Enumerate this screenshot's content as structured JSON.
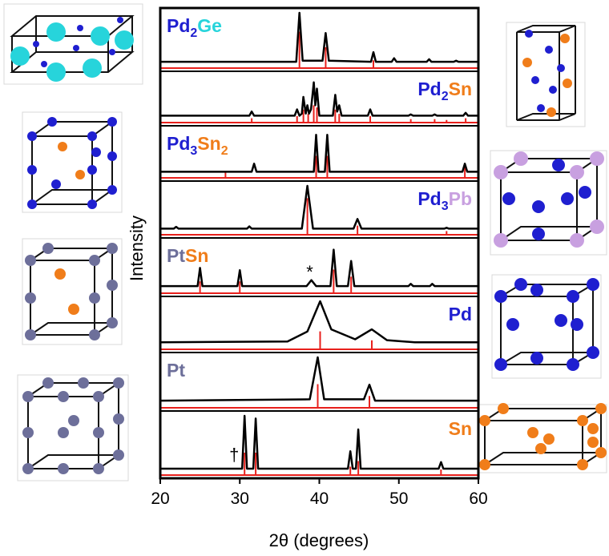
{
  "chart_data": {
    "type": "line",
    "xlabel": "2θ (degrees)",
    "ylabel": "Intensity",
    "xlim": [
      20,
      60
    ],
    "xticks": [
      20,
      30,
      40,
      50,
      60
    ],
    "line_color": "#000000",
    "ref_color": "#e8201c",
    "patterns": [
      {
        "label": [
          {
            "text": "Pd",
            "color": "#1f1fd0"
          },
          {
            "text": "2",
            "color": "#1f1fd0",
            "sub": true
          },
          {
            "text": "Ge",
            "color": "#27d4db"
          }
        ],
        "x": [
          20,
          37.1,
          37.5,
          37.9,
          40.4,
          40.8,
          41.2,
          46.5,
          46.8,
          47.1,
          49.1,
          49.4,
          49.7,
          53.5,
          53.8,
          54.1,
          56.9,
          57.2,
          57.5,
          60
        ],
        "y": [
          0.03,
          0.03,
          1.0,
          0.05,
          0.05,
          0.6,
          0.05,
          0.03,
          0.22,
          0.03,
          0.03,
          0.1,
          0.03,
          0.03,
          0.08,
          0.03,
          0.03,
          0.05,
          0.03,
          0.03
        ],
        "ref_positions": [
          37.5,
          40.8,
          46.8
        ],
        "ref_heights": [
          0.7,
          0.4,
          0.15
        ]
      },
      {
        "label": [
          {
            "text": "Pd",
            "color": "#1f1fd0"
          },
          {
            "text": "2",
            "color": "#1f1fd0",
            "sub": true
          },
          {
            "text": "Sn",
            "color": "#f07d1a"
          }
        ],
        "x": [
          20,
          31.2,
          31.5,
          31.8,
          36.9,
          37.2,
          37.5,
          37.8,
          38.0,
          38.3,
          38.5,
          38.7,
          38.95,
          39.3,
          39.5,
          39.7,
          40.0,
          41.7,
          42.0,
          42.25,
          42.5,
          42.8,
          46.1,
          46.4,
          46.7,
          51.2,
          51.5,
          51.8,
          54.2,
          54.5,
          54.8,
          58.1,
          58.4,
          58.7,
          60
        ],
        "y": [
          0.05,
          0.05,
          0.15,
          0.05,
          0.05,
          0.2,
          0.05,
          0.1,
          0.5,
          0.1,
          0.3,
          0.1,
          0.2,
          0.85,
          0.3,
          0.7,
          0.05,
          0.05,
          0.55,
          0.15,
          0.3,
          0.05,
          0.05,
          0.2,
          0.05,
          0.05,
          0.08,
          0.05,
          0.05,
          0.08,
          0.05,
          0.05,
          0.12,
          0.05,
          0.05
        ],
        "ref_positions": [
          31.5,
          37.2,
          38.0,
          38.6,
          39.3,
          39.7,
          42.0,
          42.5,
          46.4,
          51.5,
          54.5,
          56.0,
          58.4
        ],
        "ref_heights": [
          0.1,
          0.15,
          0.3,
          0.2,
          0.4,
          0.35,
          0.3,
          0.2,
          0.15,
          0.08,
          0.08,
          0.06,
          0.1
        ]
      },
      {
        "label": [
          {
            "text": "Pd",
            "color": "#1f1fd0"
          },
          {
            "text": "3",
            "color": "#1f1fd0",
            "sub": true
          },
          {
            "text": "Sn",
            "color": "#f07d1a"
          },
          {
            "text": "2",
            "color": "#f07d1a",
            "sub": true
          }
        ],
        "x": [
          20,
          31.5,
          31.8,
          32.1,
          39.3,
          39.6,
          39.9,
          40.7,
          41.0,
          41.3,
          58.0,
          58.3,
          58.6,
          60
        ],
        "y": [
          0.03,
          0.03,
          0.22,
          0.03,
          0.03,
          0.9,
          0.03,
          0.03,
          0.9,
          0.03,
          0.03,
          0.22,
          0.03,
          0.03
        ],
        "ref_positions": [
          28.2,
          39.6,
          41.0,
          58.3
        ],
        "ref_heights": [
          0.15,
          0.5,
          0.5,
          0.3
        ]
      },
      {
        "label": [
          {
            "text": "Pd",
            "color": "#1f1fd0"
          },
          {
            "text": "3",
            "color": "#1f1fd0",
            "sub": true
          },
          {
            "text": "Pb",
            "color": "#c8a0e0"
          }
        ],
        "x": [
          20,
          21.7,
          22.0,
          22.3,
          30.9,
          31.2,
          31.5,
          37.8,
          38.5,
          39.2,
          44.3,
          44.8,
          45.3,
          55.7,
          56.0,
          56.3,
          60
        ],
        "y": [
          0.03,
          0.03,
          0.07,
          0.03,
          0.03,
          0.08,
          0.03,
          0.03,
          1.0,
          0.03,
          0.03,
          0.25,
          0.03,
          0.03,
          0.05,
          0.03,
          0.03
        ],
        "ref_positions": [
          38.5,
          44.8,
          56.0
        ],
        "ref_heights": [
          0.8,
          0.2,
          0.08
        ]
      },
      {
        "label": [
          {
            "text": "Pt",
            "color": "#6d6f9a"
          },
          {
            "text": "Sn",
            "color": "#f07d1a"
          }
        ],
        "x": [
          20,
          24.7,
          25.0,
          25.3,
          29.7,
          30.0,
          30.3,
          38.4,
          39.0,
          39.6,
          41.4,
          41.8,
          42.2,
          43.6,
          44.0,
          44.4,
          51.2,
          51.5,
          51.8,
          53.9,
          54.2,
          54.5,
          60
        ],
        "y": [
          0.05,
          0.05,
          0.45,
          0.05,
          0.05,
          0.4,
          0.05,
          0.05,
          0.18,
          0.05,
          0.05,
          0.85,
          0.05,
          0.05,
          0.6,
          0.05,
          0.05,
          0.1,
          0.05,
          0.05,
          0.1,
          0.05,
          0.05
        ],
        "ref_positions": [
          25.0,
          30.0,
          41.8,
          44.0
        ],
        "ref_heights": [
          0.25,
          0.25,
          0.5,
          0.35
        ],
        "annotation": {
          "text": "*",
          "x": 38.8
        }
      },
      {
        "label": [
          {
            "text": "Pd",
            "color": "#1f1fd0"
          }
        ],
        "x": [
          20,
          36,
          38.5,
          40.1,
          41.5,
          44.5,
          46.6,
          48.5,
          52,
          60
        ],
        "y": [
          0.05,
          0.07,
          0.3,
          1.0,
          0.35,
          0.12,
          0.35,
          0.1,
          0.05,
          0.05
        ],
        "ref_positions": [
          40.1,
          46.6
        ],
        "ref_heights": [
          0.4,
          0.2
        ]
      },
      {
        "label": [
          {
            "text": "Pt",
            "color": "#6d6f9a"
          }
        ],
        "x": [
          20,
          38.8,
          39.8,
          40.6,
          45.6,
          46.3,
          47.0,
          60
        ],
        "y": [
          0.05,
          0.08,
          1.0,
          0.08,
          0.08,
          0.4,
          0.05,
          0.05
        ],
        "ref_positions": [
          39.8,
          46.3
        ],
        "ref_heights": [
          0.5,
          0.25
        ]
      },
      {
        "label": [
          {
            "text": "Sn",
            "color": "#f07d1a"
          }
        ],
        "x": [
          20,
          30.3,
          30.6,
          30.9,
          31.7,
          32.0,
          32.3,
          43.6,
          43.9,
          44.2,
          44.6,
          44.9,
          45.2,
          55.0,
          55.3,
          55.6,
          60
        ],
        "y": [
          0.03,
          0.03,
          1.0,
          0.03,
          0.03,
          0.95,
          0.03,
          0.03,
          0.35,
          0.03,
          0.03,
          0.75,
          0.03,
          0.03,
          0.15,
          0.03,
          0.03
        ],
        "ref_positions": [
          30.6,
          32.0,
          43.9,
          44.9,
          55.3
        ],
        "ref_heights": [
          0.4,
          0.4,
          0.15,
          0.25,
          0.1
        ],
        "annotation": {
          "text": "†",
          "x": 29.3
        }
      }
    ]
  }
}
